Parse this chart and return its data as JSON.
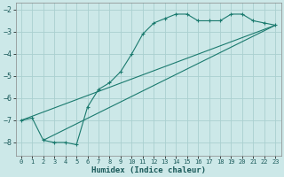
{
  "title": "",
  "xlabel": "Humidex (Indice chaleur)",
  "ylabel": "",
  "bg_color": "#cce8e8",
  "grid_color": "#aad0d0",
  "line_color": "#1a7a6e",
  "xlim": [
    -0.5,
    23.5
  ],
  "ylim": [
    -8.6,
    -1.7
  ],
  "xticks": [
    0,
    1,
    2,
    3,
    4,
    5,
    6,
    7,
    8,
    9,
    10,
    11,
    12,
    13,
    14,
    15,
    16,
    17,
    18,
    19,
    20,
    21,
    22,
    23
  ],
  "yticks": [
    -8,
    -7,
    -6,
    -5,
    -4,
    -3,
    -2
  ],
  "line1_x": [
    0,
    1,
    2,
    3,
    4,
    5,
    6,
    7,
    8,
    9,
    10,
    11,
    12,
    13,
    14,
    15,
    16,
    17,
    18,
    19,
    20,
    21,
    22,
    23
  ],
  "line1_y": [
    -7.0,
    -6.9,
    -7.9,
    -8.0,
    -8.0,
    -8.1,
    -6.4,
    -5.6,
    -5.3,
    -4.8,
    -4.0,
    -3.1,
    -2.6,
    -2.4,
    -2.2,
    -2.2,
    -2.5,
    -2.5,
    -2.5,
    -2.2,
    -2.2,
    -2.5,
    -2.6,
    -2.7
  ],
  "line2_x": [
    0,
    23
  ],
  "line2_y": [
    -7.0,
    -2.7
  ],
  "line3_x": [
    2,
    23
  ],
  "line3_y": [
    -7.9,
    -2.7
  ]
}
